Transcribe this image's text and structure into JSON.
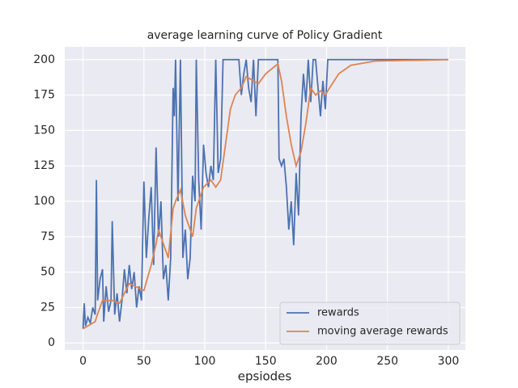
{
  "chart_data": {
    "type": "line",
    "title": "average learning curve of Policy Gradient",
    "xlabel": "epsiodes",
    "xlim": [
      -15,
      314
    ],
    "ylim": [
      -5,
      209
    ],
    "xticks": [
      0,
      50,
      100,
      150,
      200,
      250,
      300
    ],
    "yticks": [
      0,
      25,
      50,
      75,
      100,
      125,
      150,
      175,
      200
    ],
    "grid": true,
    "legend": "lower right",
    "series": [
      {
        "name": "rewards",
        "color": "#4c72b0",
        "x": [
          0,
          1,
          2,
          4,
          6,
          8,
          10,
          11,
          12,
          14,
          16,
          17,
          19,
          21,
          23,
          24,
          26,
          28,
          30,
          32,
          34,
          36,
          38,
          40,
          42,
          44,
          46,
          48,
          50,
          52,
          54,
          56,
          58,
          60,
          62,
          64,
          66,
          68,
          70,
          72,
          74,
          75,
          76,
          78,
          80,
          82,
          84,
          86,
          88,
          90,
          92,
          93,
          95,
          97,
          99,
          101,
          103,
          105,
          107,
          109,
          111,
          113,
          115,
          120,
          125,
          128,
          130,
          132,
          134,
          136,
          138,
          140,
          142,
          144,
          150,
          155,
          160,
          161,
          163,
          165,
          167,
          169,
          171,
          173,
          175,
          177,
          179,
          181,
          183,
          185,
          187,
          189,
          191,
          193,
          195,
          197,
          199,
          201,
          205,
          300
        ],
        "values": [
          10,
          28,
          12,
          18,
          14,
          25,
          20,
          115,
          30,
          45,
          52,
          15,
          40,
          22,
          30,
          86,
          20,
          35,
          15,
          30,
          52,
          35,
          55,
          38,
          50,
          25,
          40,
          30,
          114,
          60,
          88,
          110,
          55,
          138,
          75,
          100,
          45,
          55,
          30,
          60,
          180,
          160,
          200,
          100,
          200,
          60,
          80,
          45,
          60,
          118,
          100,
          200,
          115,
          80,
          140,
          120,
          110,
          125,
          115,
          200,
          120,
          130,
          200,
          200,
          200,
          200,
          175,
          190,
          200,
          180,
          170,
          200,
          160,
          200,
          200,
          200,
          200,
          130,
          125,
          130,
          110,
          80,
          100,
          69,
          120,
          90,
          160,
          190,
          170,
          200,
          170,
          200,
          200,
          180,
          160,
          185,
          165,
          200,
          200,
          200
        ]
      },
      {
        "name": "moving average rewards",
        "color": "#dd8452",
        "x": [
          0,
          10,
          11,
          16,
          24,
          30,
          38,
          50,
          56,
          60,
          62,
          66,
          70,
          74,
          76,
          80,
          84,
          90,
          93,
          99,
          105,
          109,
          113,
          117,
          121,
          125,
          130,
          134,
          140,
          144,
          150,
          160,
          163,
          167,
          171,
          175,
          179,
          183,
          187,
          191,
          195,
          199,
          201,
          210,
          220,
          240,
          300
        ],
        "values": [
          10,
          15,
          18,
          30,
          30,
          28,
          42,
          37,
          55,
          70,
          80,
          70,
          60,
          95,
          100,
          108,
          90,
          75,
          95,
          110,
          115,
          110,
          115,
          140,
          165,
          175,
          180,
          188,
          185,
          183,
          190,
          197,
          185,
          160,
          140,
          125,
          135,
          155,
          180,
          175,
          178,
          175,
          178,
          190,
          196,
          199,
          200
        ]
      }
    ]
  }
}
